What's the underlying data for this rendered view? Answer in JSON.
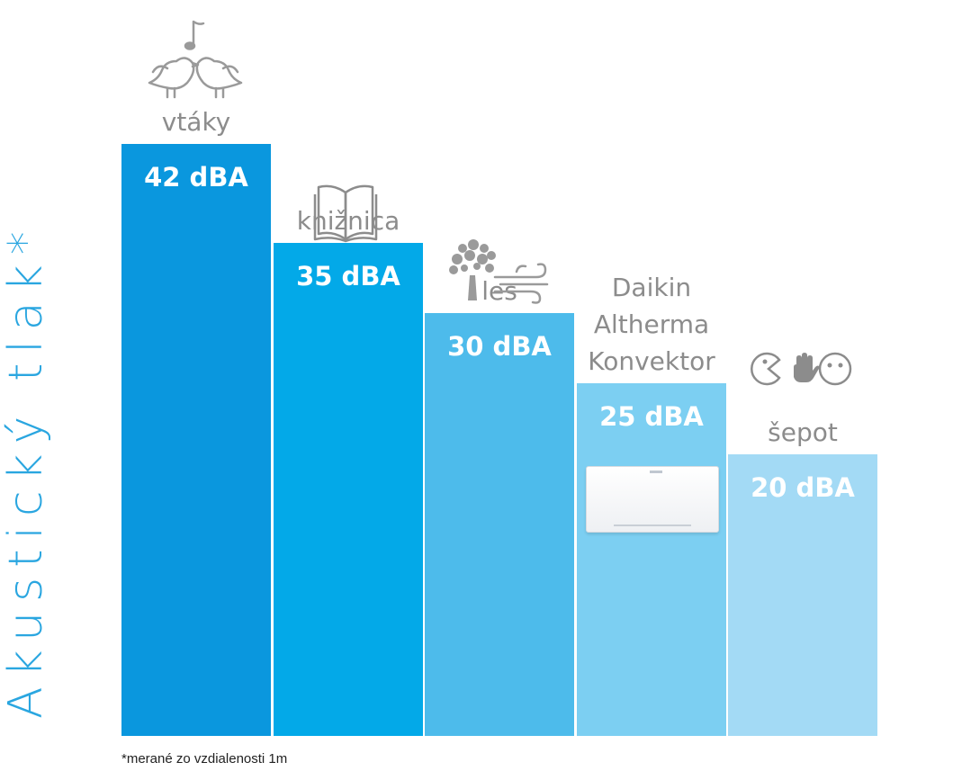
{
  "chart_data": {
    "type": "bar",
    "ylabel": "Akustický tlak*",
    "categories": [
      "vtáky",
      "knižnica",
      "les",
      "Daikin Altherma Konvektor",
      "šepot"
    ],
    "category_lines": [
      [
        "vtáky"
      ],
      [
        "knižnica"
      ],
      [
        "les"
      ],
      [
        "Daikin",
        "Altherma",
        "Konvektor"
      ],
      [
        "šepot"
      ]
    ],
    "values": [
      42,
      35,
      30,
      25,
      20
    ],
    "value_labels": [
      "42 dBA",
      "35 dBA",
      "30 dBA",
      "25 dBA",
      "20 dBA"
    ],
    "unit": "dBA",
    "ylim": [
      0,
      42
    ],
    "colors": [
      "#0a97de",
      "#03a9e8",
      "#4dbbeb",
      "#7ccff2",
      "#a3daf5"
    ],
    "icons": [
      "birds-icon",
      "book-icon",
      "tree-wind-icon",
      "heat-pump-device",
      "whisper-icon"
    ],
    "footnote": "*merané zo vzdialenosti 1m"
  }
}
